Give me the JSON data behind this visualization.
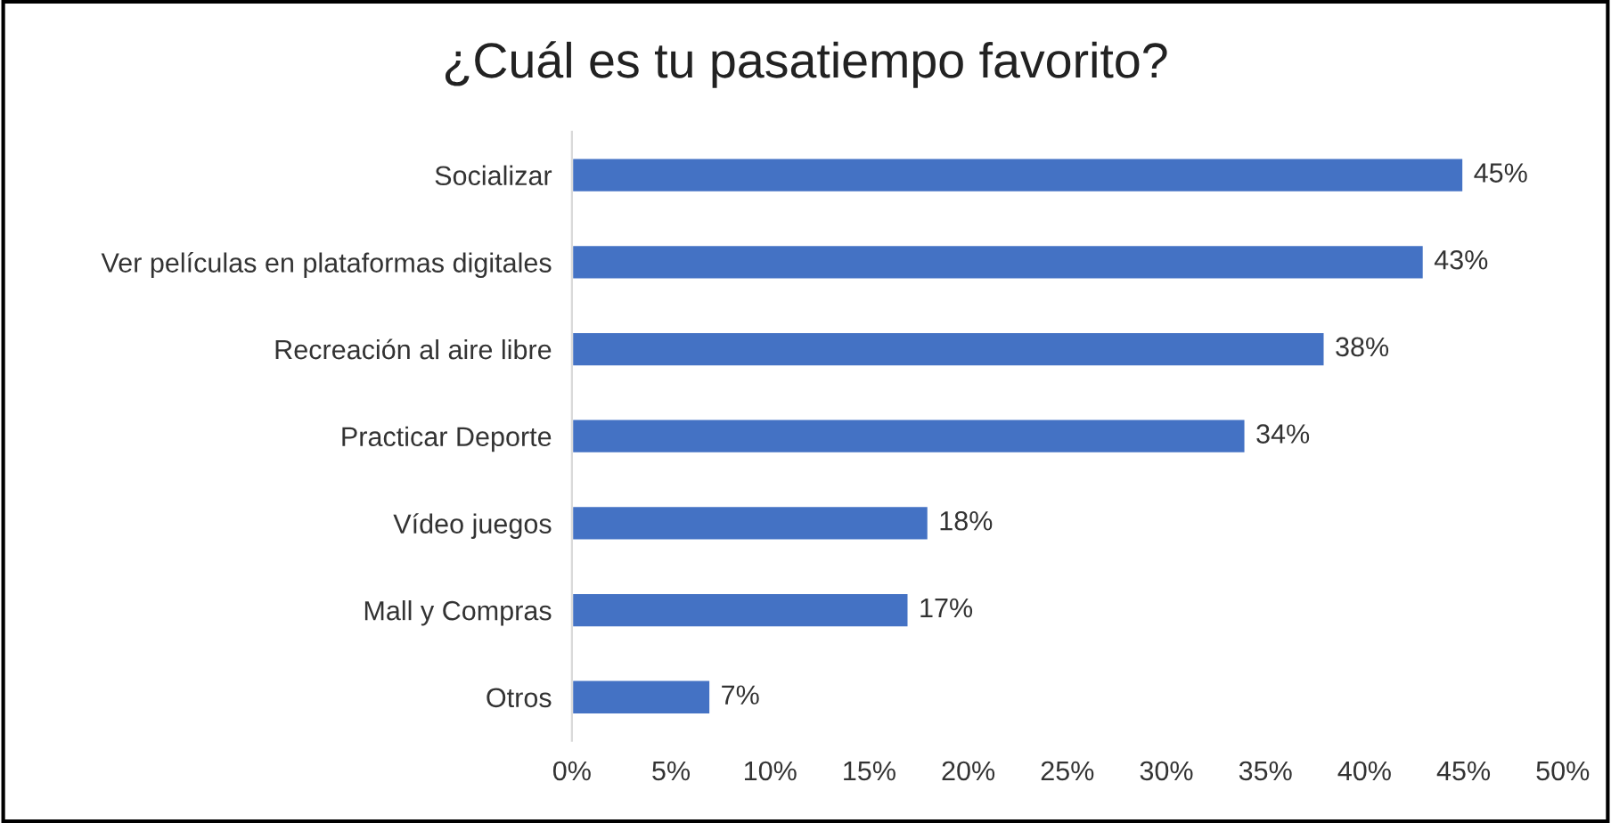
{
  "chart_data": {
    "type": "bar",
    "orientation": "horizontal",
    "title": "¿Cuál es tu pasatiempo favorito?",
    "categories": [
      "Socializar",
      "Ver películas en plataformas digitales",
      "Recreación al aire libre",
      "Practicar Deporte",
      "Vídeo juegos",
      "Mall y Compras",
      "Otros"
    ],
    "values": [
      45,
      43,
      38,
      34,
      18,
      17,
      7
    ],
    "value_labels": [
      "45%",
      "43%",
      "38%",
      "34%",
      "18%",
      "17%",
      "7%"
    ],
    "color": "#4472c4",
    "xlim": [
      0,
      50
    ],
    "xticks": [
      {
        "value": 0,
        "label": "0%"
      },
      {
        "value": 5,
        "label": "5%"
      },
      {
        "value": 10,
        "label": "10%"
      },
      {
        "value": 15,
        "label": "15%"
      },
      {
        "value": 20,
        "label": "20%"
      },
      {
        "value": 25,
        "label": "25%"
      },
      {
        "value": 30,
        "label": "30%"
      },
      {
        "value": 35,
        "label": "35%"
      },
      {
        "value": 40,
        "label": "40%"
      },
      {
        "value": 45,
        "label": "45%"
      },
      {
        "value": 50,
        "label": "50%"
      }
    ],
    "grid": false,
    "legend": false
  }
}
